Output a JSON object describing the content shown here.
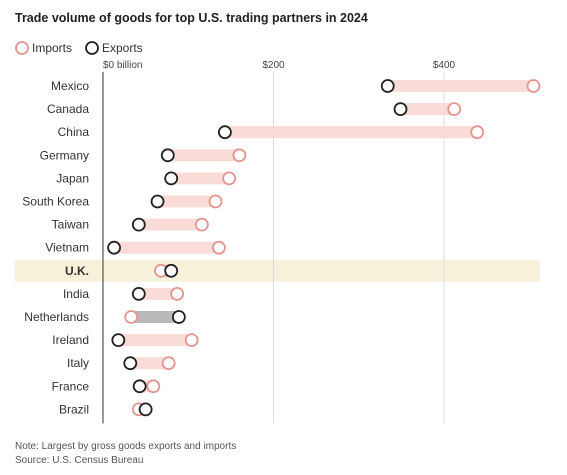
{
  "chart_data": {
    "type": "dumbbell",
    "title": "Trade volume of goods for top U.S. trading partners in 2024",
    "legend": [
      {
        "name": "Imports",
        "color": "#e49590"
      },
      {
        "name": "Exports",
        "color": "#222222"
      }
    ],
    "x_ticks": [
      {
        "value": 0,
        "label": "$0 billion"
      },
      {
        "value": 200,
        "label": "$200"
      },
      {
        "value": 400,
        "label": "$400"
      }
    ],
    "xlim": [
      0,
      500
    ],
    "highlight": "U.K.",
    "categories": [
      "Mexico",
      "Canada",
      "China",
      "Germany",
      "Japan",
      "South Korea",
      "Taiwan",
      "Vietnam",
      "U.K.",
      "India",
      "Netherlands",
      "Ireland",
      "Italy",
      "France",
      "Brazil"
    ],
    "series": [
      {
        "name": "Imports",
        "values": [
          505,
          412,
          439,
          160,
          148,
          132,
          116,
          136,
          68,
          87,
          33,
          104,
          77,
          59,
          42
        ]
      },
      {
        "name": "Exports",
        "values": [
          334,
          349,
          143,
          76,
          80,
          64,
          42,
          13,
          80,
          42,
          89,
          18,
          32,
          43,
          50
        ]
      }
    ],
    "colors": {
      "imports_bar": "#f9dcd7",
      "netherlands_bar": "#b9b9b9",
      "highlight_band": "#f7f1da",
      "imports_stroke": "#e49590",
      "exports_stroke": "#222222",
      "axis_line": "#555555",
      "grid": "#dddddd"
    },
    "notes": [
      "Note: Largest by gross goods exports and imports",
      "Source: U.S. Census Bureau"
    ]
  }
}
